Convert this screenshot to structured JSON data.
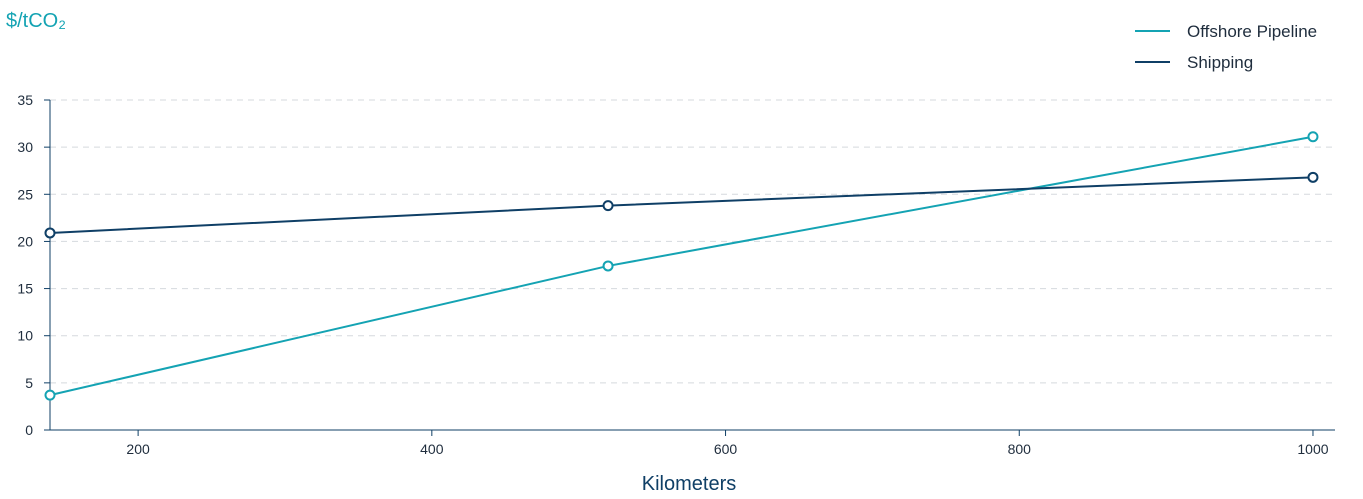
{
  "chart_data": {
    "type": "line",
    "ylabel": "$/tCO₂",
    "xlabel": "Kilometers",
    "xlim": [
      140,
      1015
    ],
    "ylim": [
      0,
      35
    ],
    "x_ticks": [
      200,
      400,
      600,
      800,
      1000
    ],
    "y_ticks": [
      0,
      5,
      10,
      15,
      20,
      25,
      30,
      35
    ],
    "grid": "horizontal-dashed",
    "legend_position": "top-right",
    "series": [
      {
        "name": "Offshore Pipeline",
        "color": "#14a3b3",
        "points": [
          [
            140,
            3.7
          ],
          [
            520,
            17.4
          ],
          [
            1000,
            31.1
          ]
        ]
      },
      {
        "name": "Shipping",
        "color": "#0f3f66",
        "points": [
          [
            140,
            20.9
          ],
          [
            520,
            23.8
          ],
          [
            1000,
            26.8
          ]
        ]
      }
    ]
  }
}
